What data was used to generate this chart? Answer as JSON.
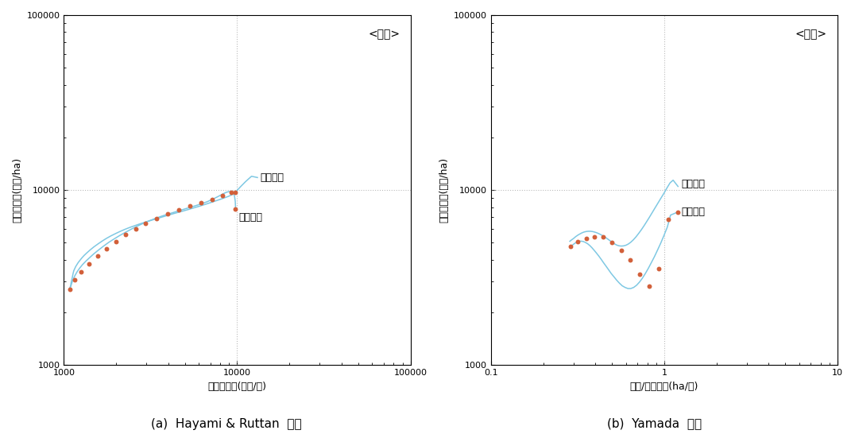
{
  "title_a": "<전남>",
  "title_b": "<전남>",
  "xlabel_a": "노동생산성(천원/인)",
  "xlabel_b": "토지/노동비율(ha/인)",
  "ylabel": "토지생산성(천원/ha)",
  "caption_a": "(a)  Hayami & Ruttan  경로",
  "caption_b": "(b)  Yamada  경로",
  "label_nongup": "농업전체",
  "label_gyeong": "경종부문",
  "line_color": "#7EC8E3",
  "dot_color": "#D2603A",
  "ref_line_color": "#BBBBBB",
  "hayami_total_x": [
    1080,
    1095,
    1100,
    1110,
    1120,
    1130,
    1140,
    1155,
    1170,
    1190,
    1210,
    1240,
    1270,
    1310,
    1360,
    1420,
    1490,
    1570,
    1660,
    1760,
    1870,
    1990,
    2120,
    2260,
    2410,
    2570,
    2740,
    2930,
    3140,
    3370,
    3620,
    3890,
    4190,
    4510,
    4860,
    5230,
    5630,
    6050,
    6490,
    6960,
    7440,
    7940,
    8440,
    8920,
    9360,
    9720,
    10010,
    10500,
    11200,
    12100,
    13100
  ],
  "hayami_total_y": [
    2750,
    2850,
    2950,
    3070,
    3200,
    3340,
    3460,
    3560,
    3660,
    3760,
    3860,
    3980,
    4100,
    4240,
    4390,
    4560,
    4740,
    4920,
    5110,
    5300,
    5480,
    5650,
    5820,
    5980,
    6130,
    6270,
    6410,
    6550,
    6690,
    6830,
    6980,
    7130,
    7290,
    7440,
    7590,
    7750,
    7920,
    8090,
    8270,
    8460,
    8650,
    8840,
    9030,
    9220,
    9420,
    9660,
    9980,
    10500,
    11200,
    12000,
    11800
  ],
  "hayami_gyeong_x": [
    1080,
    1095,
    1110,
    1130,
    1160,
    1195,
    1235,
    1280,
    1340,
    1410,
    1490,
    1590,
    1700,
    1820,
    1960,
    2110,
    2280,
    2470,
    2680,
    2910,
    3170,
    3450,
    3760,
    4100,
    4470,
    4870,
    5300,
    5760,
    6240,
    6740,
    7240,
    7740,
    8220,
    8660,
    9020,
    9300,
    9510,
    9660,
    9750,
    9800
  ],
  "hayami_gyeong_y": [
    2700,
    2810,
    2940,
    3090,
    3260,
    3430,
    3590,
    3750,
    3930,
    4120,
    4330,
    4560,
    4800,
    5040,
    5280,
    5520,
    5760,
    6010,
    6260,
    6500,
    6730,
    6950,
    7160,
    7350,
    7550,
    7750,
    7950,
    8150,
    8360,
    8600,
    8880,
    9180,
    9480,
    9720,
    9820,
    9780,
    9580,
    9220,
    8620,
    7800
  ],
  "hayami_dots_x": [
    1085,
    1150,
    1260,
    1390,
    1560,
    1760,
    1990,
    2270,
    2590,
    2970,
    3420,
    3960,
    4590,
    5340,
    6200,
    7180,
    8260,
    9220,
    9700,
    9780
  ],
  "hayami_dots_y": [
    2720,
    3080,
    3430,
    3800,
    4200,
    4640,
    5090,
    5550,
    6010,
    6460,
    6910,
    7330,
    7720,
    8090,
    8470,
    8880,
    9330,
    9750,
    9700,
    7800
  ],
  "hayami_vline": 10000,
  "hayami_hline": 10000,
  "hayami_xlim": [
    1000,
    100000
  ],
  "hayami_ylim": [
    1000,
    100000
  ],
  "yamada_total_x": [
    0.285,
    0.292,
    0.3,
    0.308,
    0.317,
    0.326,
    0.335,
    0.344,
    0.354,
    0.364,
    0.374,
    0.385,
    0.396,
    0.407,
    0.419,
    0.431,
    0.444,
    0.457,
    0.471,
    0.485,
    0.5,
    0.515,
    0.53,
    0.546,
    0.563,
    0.581,
    0.6,
    0.62,
    0.641,
    0.663,
    0.686,
    0.71,
    0.736,
    0.763,
    0.791,
    0.821,
    0.852,
    0.885,
    0.92,
    0.957,
    0.996,
    1.037,
    1.08,
    1.125,
    1.2
  ],
  "yamada_total_y": [
    5100,
    5200,
    5300,
    5420,
    5530,
    5620,
    5700,
    5760,
    5800,
    5820,
    5820,
    5800,
    5760,
    5710,
    5640,
    5560,
    5470,
    5370,
    5260,
    5150,
    5040,
    4940,
    4860,
    4810,
    4790,
    4800,
    4840,
    4920,
    5040,
    5200,
    5400,
    5640,
    5920,
    6240,
    6600,
    7000,
    7440,
    7920,
    8440,
    9000,
    9600,
    10300,
    11000,
    11400,
    10500
  ],
  "yamada_gyeong_x": [
    0.285,
    0.293,
    0.302,
    0.311,
    0.32,
    0.33,
    0.34,
    0.35,
    0.361,
    0.372,
    0.383,
    0.394,
    0.406,
    0.419,
    0.432,
    0.446,
    0.461,
    0.477,
    0.494,
    0.512,
    0.531,
    0.551,
    0.572,
    0.594,
    0.617,
    0.641,
    0.666,
    0.692,
    0.719,
    0.748,
    0.778,
    0.81,
    0.843,
    0.879,
    0.916,
    0.956,
    0.997,
    1.041,
    1.087,
    1.2
  ],
  "yamada_gyeong_y": [
    4700,
    4820,
    4940,
    5030,
    5090,
    5110,
    5090,
    5030,
    4940,
    4820,
    4680,
    4530,
    4370,
    4200,
    4030,
    3850,
    3680,
    3510,
    3340,
    3200,
    3060,
    2940,
    2840,
    2780,
    2740,
    2740,
    2780,
    2860,
    2980,
    3140,
    3340,
    3580,
    3860,
    4180,
    4560,
    5000,
    5520,
    6140,
    7200,
    7500
  ],
  "yamada_dots_x": [
    0.287,
    0.318,
    0.354,
    0.396,
    0.444,
    0.5,
    0.563,
    0.636,
    0.72,
    0.816,
    0.926,
    1.05,
    1.2
  ],
  "yamada_dots_y": [
    4780,
    5060,
    5280,
    5420,
    5380,
    5010,
    4540,
    3980,
    3290,
    2830,
    3560,
    6800,
    7500
  ],
  "yamada_vline": 1.0,
  "yamada_hline": 10000,
  "yamada_xlim": [
    0.1,
    10.0
  ],
  "yamada_ylim": [
    1000,
    100000
  ]
}
